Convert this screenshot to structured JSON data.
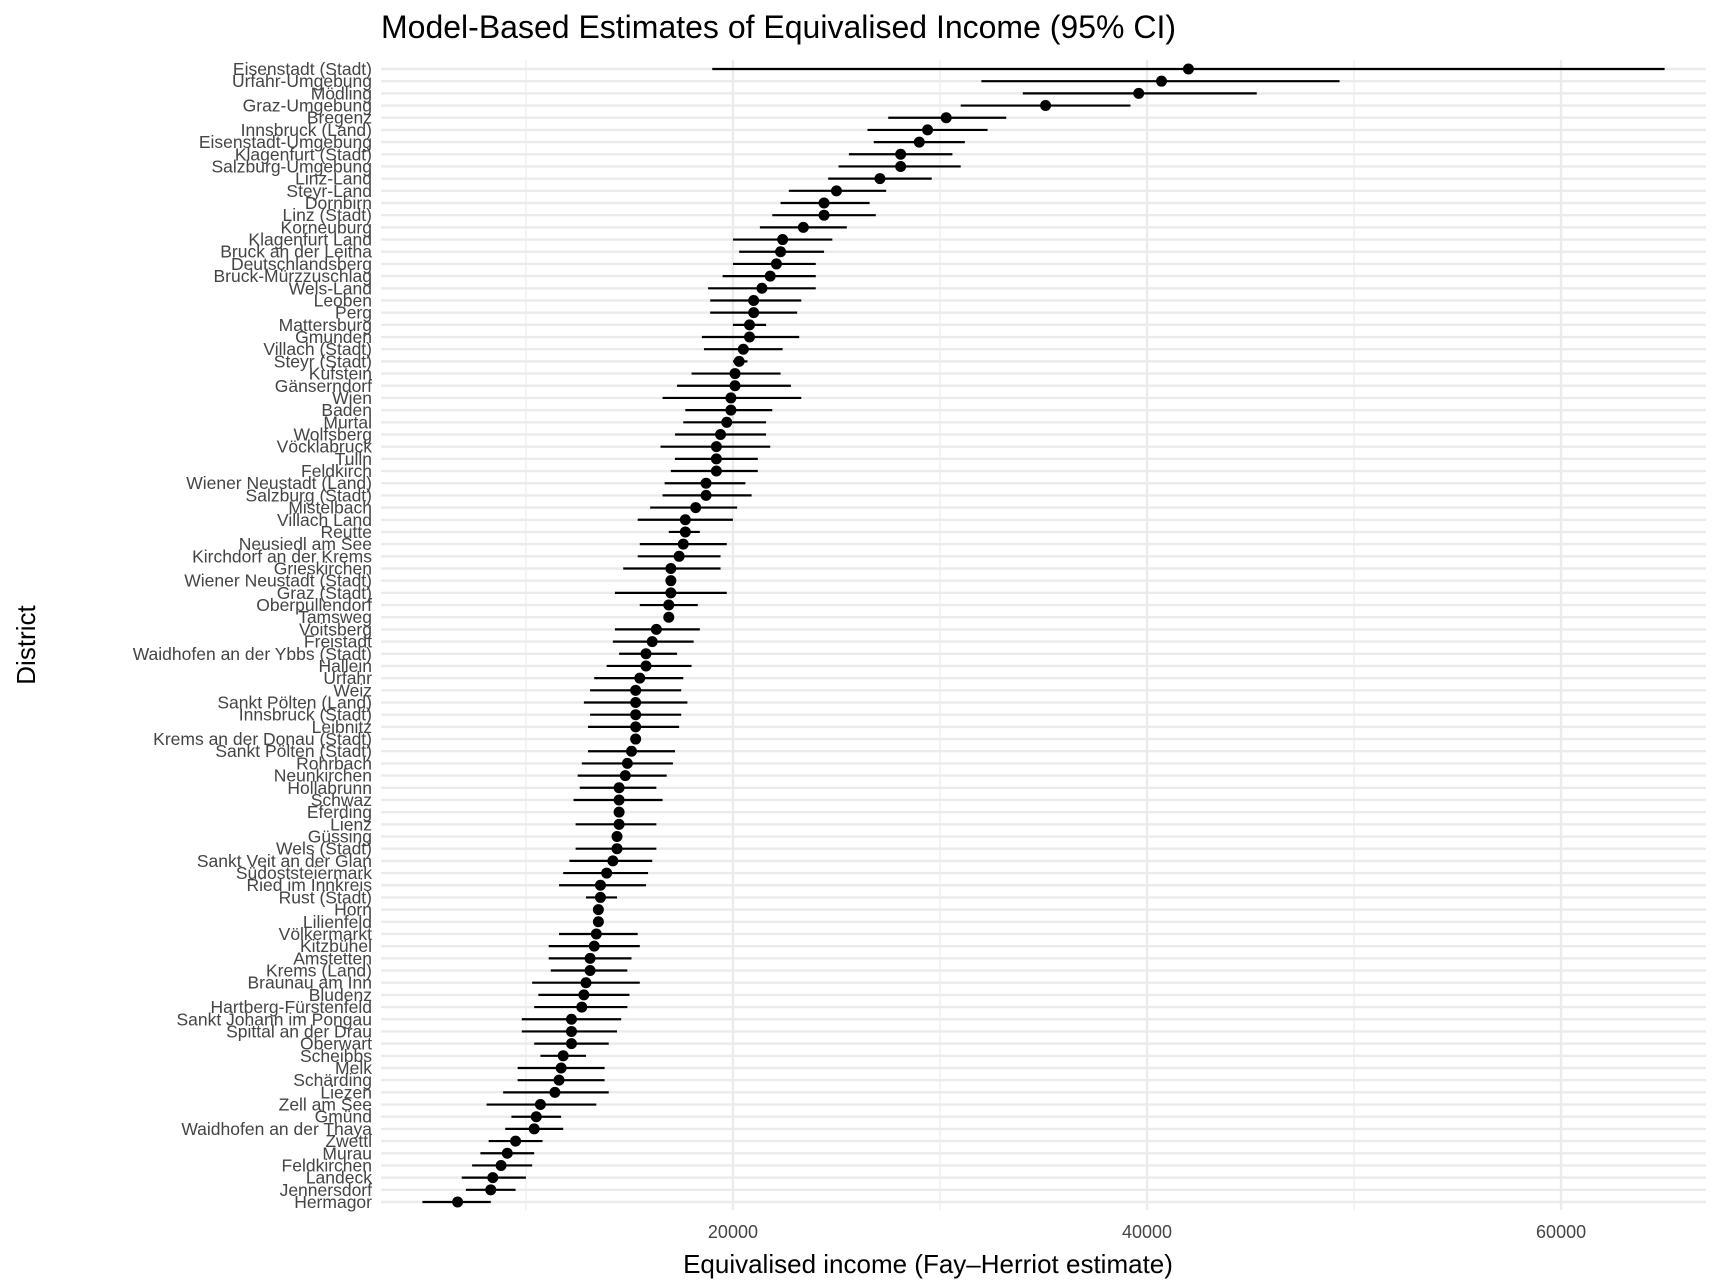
{
  "chart_data": {
    "type": "scatter",
    "title": "Model-Based Estimates of Equivalised Income (95% CI)",
    "xlabel": "Equivalised income (Fay–Herriot estimate)",
    "ylabel": "District",
    "xlim": [
      3000,
      67000
    ],
    "xticks": [
      20000,
      40000,
      60000
    ],
    "xtick_labels": [
      "20000",
      "40000",
      "60000"
    ],
    "grid": true,
    "legend": "none",
    "point_color": "#000000",
    "errorbar_color": "#000000",
    "grid_color": "#ebebeb",
    "points": [
      {
        "district": "Eisenstadt (Stadt)",
        "estimate": 42000,
        "lower": 19000,
        "upper": 65000
      },
      {
        "district": "Urfahr-Umgebung",
        "estimate": 40700,
        "lower": 32000,
        "upper": 49300
      },
      {
        "district": "Mödling",
        "estimate": 39600,
        "lower": 34000,
        "upper": 45300
      },
      {
        "district": "Graz-Umgebung",
        "estimate": 35100,
        "lower": 31000,
        "upper": 39200
      },
      {
        "district": "Bregenz",
        "estimate": 30300,
        "lower": 27500,
        "upper": 33200
      },
      {
        "district": "Innsbruck (Land)",
        "estimate": 29400,
        "lower": 26500,
        "upper": 32300
      },
      {
        "district": "Eisenstadt-Umgebung",
        "estimate": 29000,
        "lower": 26800,
        "upper": 31200
      },
      {
        "district": "Klagenfurt (Stadt)",
        "estimate": 28100,
        "lower": 25600,
        "upper": 30600
      },
      {
        "district": "Salzburg-Umgebung",
        "estimate": 28100,
        "lower": 25100,
        "upper": 31000
      },
      {
        "district": "Linz-Land",
        "estimate": 27100,
        "lower": 24600,
        "upper": 29600
      },
      {
        "district": "Steyr-Land",
        "estimate": 25000,
        "lower": 22700,
        "upper": 27400
      },
      {
        "district": "Dornbirn",
        "estimate": 24400,
        "lower": 22300,
        "upper": 26600
      },
      {
        "district": "Linz (Stadt)",
        "estimate": 24400,
        "lower": 21900,
        "upper": 26900
      },
      {
        "district": "Korneuburg",
        "estimate": 23400,
        "lower": 21300,
        "upper": 25500
      },
      {
        "district": "Klagenfurt Land",
        "estimate": 22400,
        "lower": 20000,
        "upper": 24800
      },
      {
        "district": "Bruck an der Leitha",
        "estimate": 22300,
        "lower": 20300,
        "upper": 24400
      },
      {
        "district": "Deutschlandsberg",
        "estimate": 22100,
        "lower": 20000,
        "upper": 24000
      },
      {
        "district": "Bruck-Mürzzuschlag",
        "estimate": 21800,
        "lower": 19500,
        "upper": 24000
      },
      {
        "district": "Wels-Land",
        "estimate": 21400,
        "lower": 18800,
        "upper": 24000
      },
      {
        "district": "Leoben",
        "estimate": 21000,
        "lower": 18900,
        "upper": 23300
      },
      {
        "district": "Perg",
        "estimate": 21000,
        "lower": 18900,
        "upper": 23100
      },
      {
        "district": "Mattersburg",
        "estimate": 20800,
        "lower": 20000,
        "upper": 21600
      },
      {
        "district": "Gmunden",
        "estimate": 20800,
        "lower": 18500,
        "upper": 23200
      },
      {
        "district": "Villach (Stadt)",
        "estimate": 20500,
        "lower": 18600,
        "upper": 22400
      },
      {
        "district": "Steyr (Stadt)",
        "estimate": 20300,
        "lower": 20000,
        "upper": 20700
      },
      {
        "district": "Kufstein",
        "estimate": 20100,
        "lower": 18000,
        "upper": 22300
      },
      {
        "district": "Gänserndorf",
        "estimate": 20100,
        "lower": 17300,
        "upper": 22800
      },
      {
        "district": "Wien",
        "estimate": 19900,
        "lower": 16600,
        "upper": 23300
      },
      {
        "district": "Baden",
        "estimate": 19900,
        "lower": 17700,
        "upper": 21900
      },
      {
        "district": "Murtal",
        "estimate": 19700,
        "lower": 17600,
        "upper": 21600
      },
      {
        "district": "Wolfsberg",
        "estimate": 19400,
        "lower": 17200,
        "upper": 21600
      },
      {
        "district": "Vöcklabruck",
        "estimate": 19200,
        "lower": 16500,
        "upper": 21800
      },
      {
        "district": "Tulln",
        "estimate": 19200,
        "lower": 17200,
        "upper": 21200
      },
      {
        "district": "Feldkirch",
        "estimate": 19200,
        "lower": 17000,
        "upper": 21200
      },
      {
        "district": "Wiener Neustadt (Land)",
        "estimate": 18700,
        "lower": 16700,
        "upper": 20600
      },
      {
        "district": "Salzburg (Stadt)",
        "estimate": 18700,
        "lower": 16600,
        "upper": 20900
      },
      {
        "district": "Mistelbach",
        "estimate": 18200,
        "lower": 16000,
        "upper": 20200
      },
      {
        "district": "Villach Land",
        "estimate": 17700,
        "lower": 15400,
        "upper": 20000
      },
      {
        "district": "Reutte",
        "estimate": 17700,
        "lower": 16900,
        "upper": 18400
      },
      {
        "district": "Neusiedl am See",
        "estimate": 17600,
        "lower": 15500,
        "upper": 19700
      },
      {
        "district": "Kirchdorf an der Krems",
        "estimate": 17400,
        "lower": 15400,
        "upper": 19400
      },
      {
        "district": "Grieskirchen",
        "estimate": 17000,
        "lower": 14700,
        "upper": 19400
      },
      {
        "district": "Wiener Neustadt (Stadt)",
        "estimate": 17000,
        "lower": 17000,
        "upper": 17000
      },
      {
        "district": "Graz (Stadt)",
        "estimate": 17000,
        "lower": 14300,
        "upper": 19700
      },
      {
        "district": "Oberpullendorf",
        "estimate": 16900,
        "lower": 15500,
        "upper": 18300
      },
      {
        "district": "Tamsweg",
        "estimate": 16900,
        "lower": 16900,
        "upper": 16900
      },
      {
        "district": "Voitsberg",
        "estimate": 16300,
        "lower": 14300,
        "upper": 18400
      },
      {
        "district": "Freistadt",
        "estimate": 16100,
        "lower": 14200,
        "upper": 18100
      },
      {
        "district": "Waidhofen an der Ybbs (Stadt)",
        "estimate": 15800,
        "lower": 14500,
        "upper": 17300
      },
      {
        "district": "Hallein",
        "estimate": 15800,
        "lower": 13900,
        "upper": 18000
      },
      {
        "district": "Urfahr",
        "estimate": 15500,
        "lower": 13300,
        "upper": 17600
      },
      {
        "district": "Weiz",
        "estimate": 15300,
        "lower": 13100,
        "upper": 17500
      },
      {
        "district": "Sankt Pölten (Land)",
        "estimate": 15300,
        "lower": 12800,
        "upper": 17800
      },
      {
        "district": "Innsbruck (Stadt)",
        "estimate": 15300,
        "lower": 13100,
        "upper": 17500
      },
      {
        "district": "Leibnitz",
        "estimate": 15300,
        "lower": 13000,
        "upper": 17400
      },
      {
        "district": "Krems an der Donau (Stadt)",
        "estimate": 15300,
        "lower": 15300,
        "upper": 15300
      },
      {
        "district": "Sankt Pölten (Stadt)",
        "estimate": 15100,
        "lower": 13000,
        "upper": 17200
      },
      {
        "district": "Rohrbach",
        "estimate": 14900,
        "lower": 12700,
        "upper": 17100
      },
      {
        "district": "Neunkirchen",
        "estimate": 14800,
        "lower": 12500,
        "upper": 16800
      },
      {
        "district": "Hollabrunn",
        "estimate": 14500,
        "lower": 12600,
        "upper": 16300
      },
      {
        "district": "Schwaz",
        "estimate": 14500,
        "lower": 12300,
        "upper": 16600
      },
      {
        "district": "Eferding",
        "estimate": 14500,
        "lower": 14500,
        "upper": 14500
      },
      {
        "district": "Lienz",
        "estimate": 14500,
        "lower": 12400,
        "upper": 16300
      },
      {
        "district": "Güssing",
        "estimate": 14400,
        "lower": 14400,
        "upper": 14400
      },
      {
        "district": "Wels (Stadt)",
        "estimate": 14400,
        "lower": 12400,
        "upper": 16300
      },
      {
        "district": "Sankt Veit an der Glan",
        "estimate": 14200,
        "lower": 12100,
        "upper": 16100
      },
      {
        "district": "Südoststeiermark",
        "estimate": 13900,
        "lower": 11800,
        "upper": 15900
      },
      {
        "district": "Ried im Innkreis",
        "estimate": 13600,
        "lower": 11600,
        "upper": 15800
      },
      {
        "district": "Rust (Stadt)",
        "estimate": 13600,
        "lower": 12900,
        "upper": 14400
      },
      {
        "district": "Horn",
        "estimate": 13500,
        "lower": 13500,
        "upper": 13500
      },
      {
        "district": "Lilienfeld",
        "estimate": 13500,
        "lower": 13500,
        "upper": 13500
      },
      {
        "district": "Völkermarkt",
        "estimate": 13400,
        "lower": 11600,
        "upper": 15400
      },
      {
        "district": "Kitzbühel",
        "estimate": 13300,
        "lower": 11100,
        "upper": 15500
      },
      {
        "district": "Amstetten",
        "estimate": 13100,
        "lower": 11100,
        "upper": 15100
      },
      {
        "district": "Krems (Land)",
        "estimate": 13100,
        "lower": 11200,
        "upper": 14900
      },
      {
        "district": "Braunau am Inn",
        "estimate": 12900,
        "lower": 10300,
        "upper": 15500
      },
      {
        "district": "Bludenz",
        "estimate": 12800,
        "lower": 10600,
        "upper": 15000
      },
      {
        "district": "Hartberg-Fürstenfeld",
        "estimate": 12700,
        "lower": 10400,
        "upper": 14900
      },
      {
        "district": "Sankt Johann im Pongau",
        "estimate": 12200,
        "lower": 9800,
        "upper": 14600
      },
      {
        "district": "Spittal an der Drau",
        "estimate": 12200,
        "lower": 9800,
        "upper": 14400
      },
      {
        "district": "Oberwart",
        "estimate": 12200,
        "lower": 10400,
        "upper": 14000
      },
      {
        "district": "Scheibbs",
        "estimate": 11800,
        "lower": 10700,
        "upper": 12900
      },
      {
        "district": "Melk",
        "estimate": 11700,
        "lower": 9600,
        "upper": 13800
      },
      {
        "district": "Schärding",
        "estimate": 11600,
        "lower": 9600,
        "upper": 13800
      },
      {
        "district": "Liezen",
        "estimate": 11400,
        "lower": 8900,
        "upper": 14000
      },
      {
        "district": "Zell am See",
        "estimate": 10700,
        "lower": 8100,
        "upper": 13400
      },
      {
        "district": "Gmünd",
        "estimate": 10500,
        "lower": 9300,
        "upper": 11700
      },
      {
        "district": "Waidhofen an der Thaya",
        "estimate": 10400,
        "lower": 9000,
        "upper": 11800
      },
      {
        "district": "Zwettl",
        "estimate": 9500,
        "lower": 8200,
        "upper": 10800
      },
      {
        "district": "Murau",
        "estimate": 9100,
        "lower": 7800,
        "upper": 10400
      },
      {
        "district": "Feldkirchen",
        "estimate": 8800,
        "lower": 7400,
        "upper": 10300
      },
      {
        "district": "Landeck",
        "estimate": 8400,
        "lower": 6900,
        "upper": 10000
      },
      {
        "district": "Jennersdorf",
        "estimate": 8300,
        "lower": 7100,
        "upper": 9500
      },
      {
        "district": "Hermagor",
        "estimate": 6700,
        "lower": 5000,
        "upper": 8300
      }
    ]
  }
}
